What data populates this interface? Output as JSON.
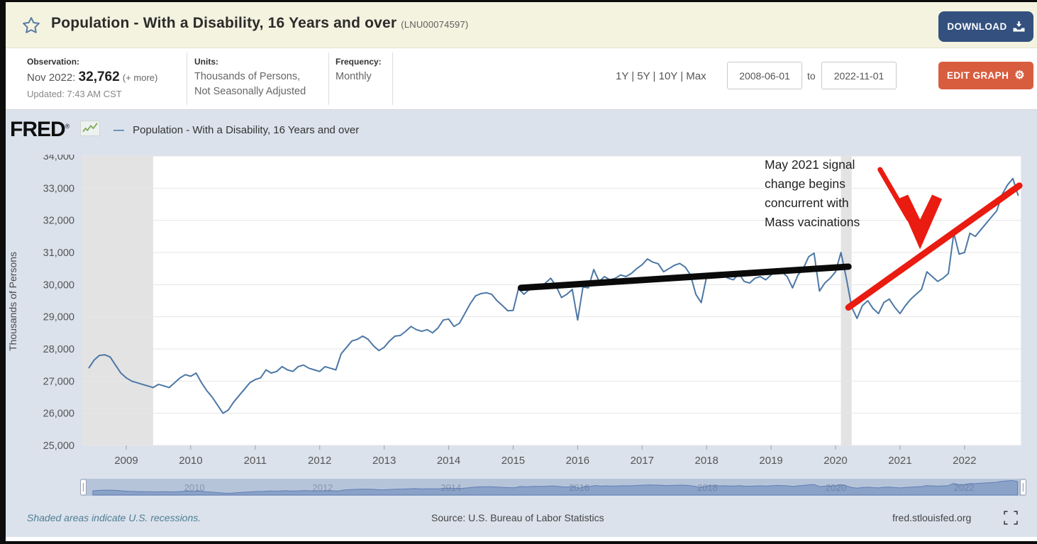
{
  "header": {
    "title": "Population - With a Disability, 16 Years and over",
    "series_id": "(LNU00074597)",
    "download_label": "DOWNLOAD"
  },
  "infobar": {
    "observation_label": "Observation:",
    "observation_date": "Nov 2022:",
    "observation_value": "32,762",
    "observation_more": "(+ more)",
    "updated": "Updated: 7:43 AM CST",
    "units_label": "Units:",
    "units_line1": "Thousands of Persons,",
    "units_line2": "Not Seasonally Adjusted",
    "frequency_label": "Frequency:",
    "frequency_value": "Monthly",
    "ranges": "1Y | 5Y | 10Y | Max",
    "date_start": "2008-06-01",
    "date_to_label": "to",
    "date_end": "2022-11-01",
    "edit_graph_label": "EDIT GRAPH"
  },
  "chart": {
    "logo_text": "FRED",
    "legend_dash": "—",
    "legend_label": "Population - With a Disability, 16 Years and over",
    "annotation": {
      "line1": "May 2021 signal",
      "line2": "change begins",
      "line3": "concurrent with",
      "line4": "Mass vacinations"
    }
  },
  "footer": {
    "recession_note": "Shaded areas indicate U.S. recessions.",
    "source": "Source: U.S. Bureau of Labor Statistics",
    "site": "fred.stlouisfed.org"
  },
  "icons": {
    "favorite": "star-outline",
    "download": "download-tray-arrow",
    "edit": "gear",
    "gear_glyph": "⚙",
    "fullscreen": "corner-brackets",
    "fred_sparkline": "mini-line-chart",
    "legend": "line-dash",
    "slider_handles": "grip-bars"
  },
  "colors": {
    "header_bg": "#f4f3e0",
    "download_btn": "#33507e",
    "edit_btn": "#d85d3f",
    "chart_bg": "#dbe2ec",
    "plot_bg": "#ffffff",
    "recession": "#e3e3e3",
    "series_line": "#4c77a5",
    "black_trend": "#0a0a0a",
    "red_annotation": "#ea1b10",
    "grid": "#e6e6e6"
  },
  "chart_data": {
    "type": "line",
    "title": "Population - With a Disability, 16 Years and over",
    "ylabel": "Thousands of Persons",
    "ylim": [
      25000,
      34000
    ],
    "y_ticks": [
      "34,000",
      "33,000",
      "32,000",
      "31,000",
      "30,000",
      "29,000",
      "28,000",
      "27,000",
      "26,000",
      "25,000"
    ],
    "x_ticks": [
      2009,
      2010,
      2011,
      2012,
      2013,
      2014,
      2015,
      2016,
      2017,
      2018,
      2019,
      2020,
      2021,
      2022
    ],
    "frequency": "Monthly",
    "start": "2008-06",
    "end": "2022-11",
    "grid": "horizontal",
    "legend_position": "top-left",
    "recessions": [
      {
        "from": "2007-12",
        "to": "2009-06"
      },
      {
        "from": "2020-02",
        "to": "2020-04"
      }
    ],
    "series": [
      {
        "name": "Population - With a Disability, 16 Years and over",
        "units": "Thousands of Persons",
        "values": [
          27400,
          27650,
          27800,
          27820,
          27750,
          27500,
          27250,
          27100,
          27000,
          26950,
          26900,
          26850,
          26800,
          26900,
          26850,
          26800,
          26950,
          27100,
          27200,
          27150,
          27250,
          26950,
          26700,
          26500,
          26250,
          26000,
          26100,
          26350,
          26550,
          26750,
          26950,
          27050,
          27100,
          27350,
          27250,
          27300,
          27450,
          27350,
          27300,
          27450,
          27500,
          27400,
          27350,
          27300,
          27450,
          27400,
          27350,
          27850,
          28050,
          28250,
          28300,
          28400,
          28300,
          28100,
          27950,
          28050,
          28250,
          28400,
          28420,
          28550,
          28700,
          28600,
          28550,
          28600,
          28500,
          28650,
          28900,
          28930,
          28700,
          28800,
          29100,
          29400,
          29650,
          29720,
          29750,
          29700,
          29500,
          29350,
          29190,
          29200,
          29880,
          29700,
          29850,
          30000,
          29900,
          30050,
          30200,
          29950,
          29600,
          29700,
          29850,
          28900,
          29930,
          29900,
          30470,
          30100,
          30250,
          30150,
          30200,
          30300,
          30250,
          30350,
          30500,
          30620,
          30800,
          30700,
          30650,
          30400,
          30500,
          30600,
          30660,
          30550,
          30300,
          29700,
          29440,
          30250,
          30350,
          30250,
          30300,
          30200,
          30150,
          30350,
          30100,
          30050,
          30200,
          30250,
          30150,
          30300,
          30500,
          30400,
          30250,
          29900,
          30300,
          30500,
          30870,
          30980,
          29800,
          30050,
          30200,
          30400,
          31000,
          30200,
          29300,
          28950,
          29350,
          29500,
          29250,
          29100,
          29450,
          29550,
          29300,
          29100,
          29350,
          29550,
          29700,
          29850,
          30400,
          30250,
          30100,
          30200,
          30350,
          31600,
          30950,
          31000,
          31600,
          31500,
          31700,
          31900,
          32100,
          32300,
          32800,
          33100,
          33300,
          32762
        ]
      }
    ],
    "annotations": {
      "black_trend": {
        "from_t": 2015.12,
        "from_v": 29900,
        "to_t": 2020.2,
        "to_v": 30560
      },
      "red_trend": {
        "from_t": 2020.2,
        "from_v": 29290,
        "to_t": 2022.85,
        "to_v": 33080
      },
      "red_arrow": {
        "from_t": 2020.69,
        "from_v": 33580,
        "tip_t": 2021.31,
        "tip_v": 31100
      }
    },
    "slider_year_labels": [
      2010,
      2012,
      2014,
      2016,
      2018,
      2020,
      2022
    ]
  }
}
